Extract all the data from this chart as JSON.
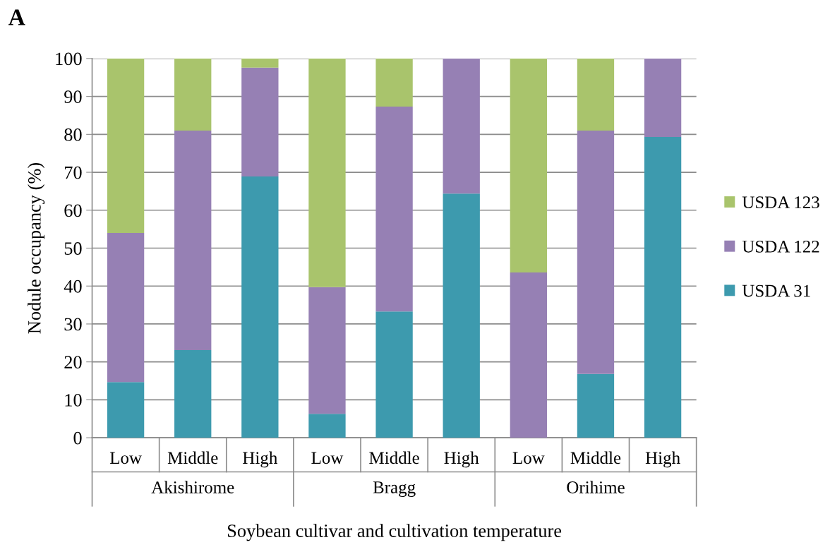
{
  "chart_data": {
    "type": "bar",
    "stacked": true,
    "ylabel": "Nodule occupancy (%)",
    "xlabel": "Soybean cultivar and cultivation temperature",
    "categories": [
      "Low",
      "Middle",
      "High",
      "Low",
      "Middle",
      "High",
      "Low",
      "Middle",
      "High"
    ],
    "series": [
      {
        "name": "USDA 31",
        "color": "#3d9aae",
        "values": [
          14.7,
          23.1,
          68.9,
          6.3,
          33.3,
          64.4,
          0,
          16.8,
          79.3
        ]
      },
      {
        "name": "USDA 122",
        "color": "#9680b4",
        "values": [
          39.3,
          57.9,
          28.7,
          33.4,
          54.0,
          35.6,
          43.6,
          64.2,
          20.7
        ]
      },
      {
        "name": "USDA 123",
        "color": "#a9c46c",
        "values": [
          46.0,
          19.0,
          2.4,
          60.3,
          12.7,
          0,
          56.4,
          19.0,
          0
        ]
      }
    ],
    "annotations": [
      "A",
      "Akishirome",
      "Bragg",
      "Orihime"
    ],
    "ylim": [
      0,
      100
    ],
    "yticks": [
      0,
      10,
      20,
      30,
      40,
      50,
      60,
      70,
      80,
      90,
      100
    ],
    "grid": "y",
    "legend": "right"
  }
}
